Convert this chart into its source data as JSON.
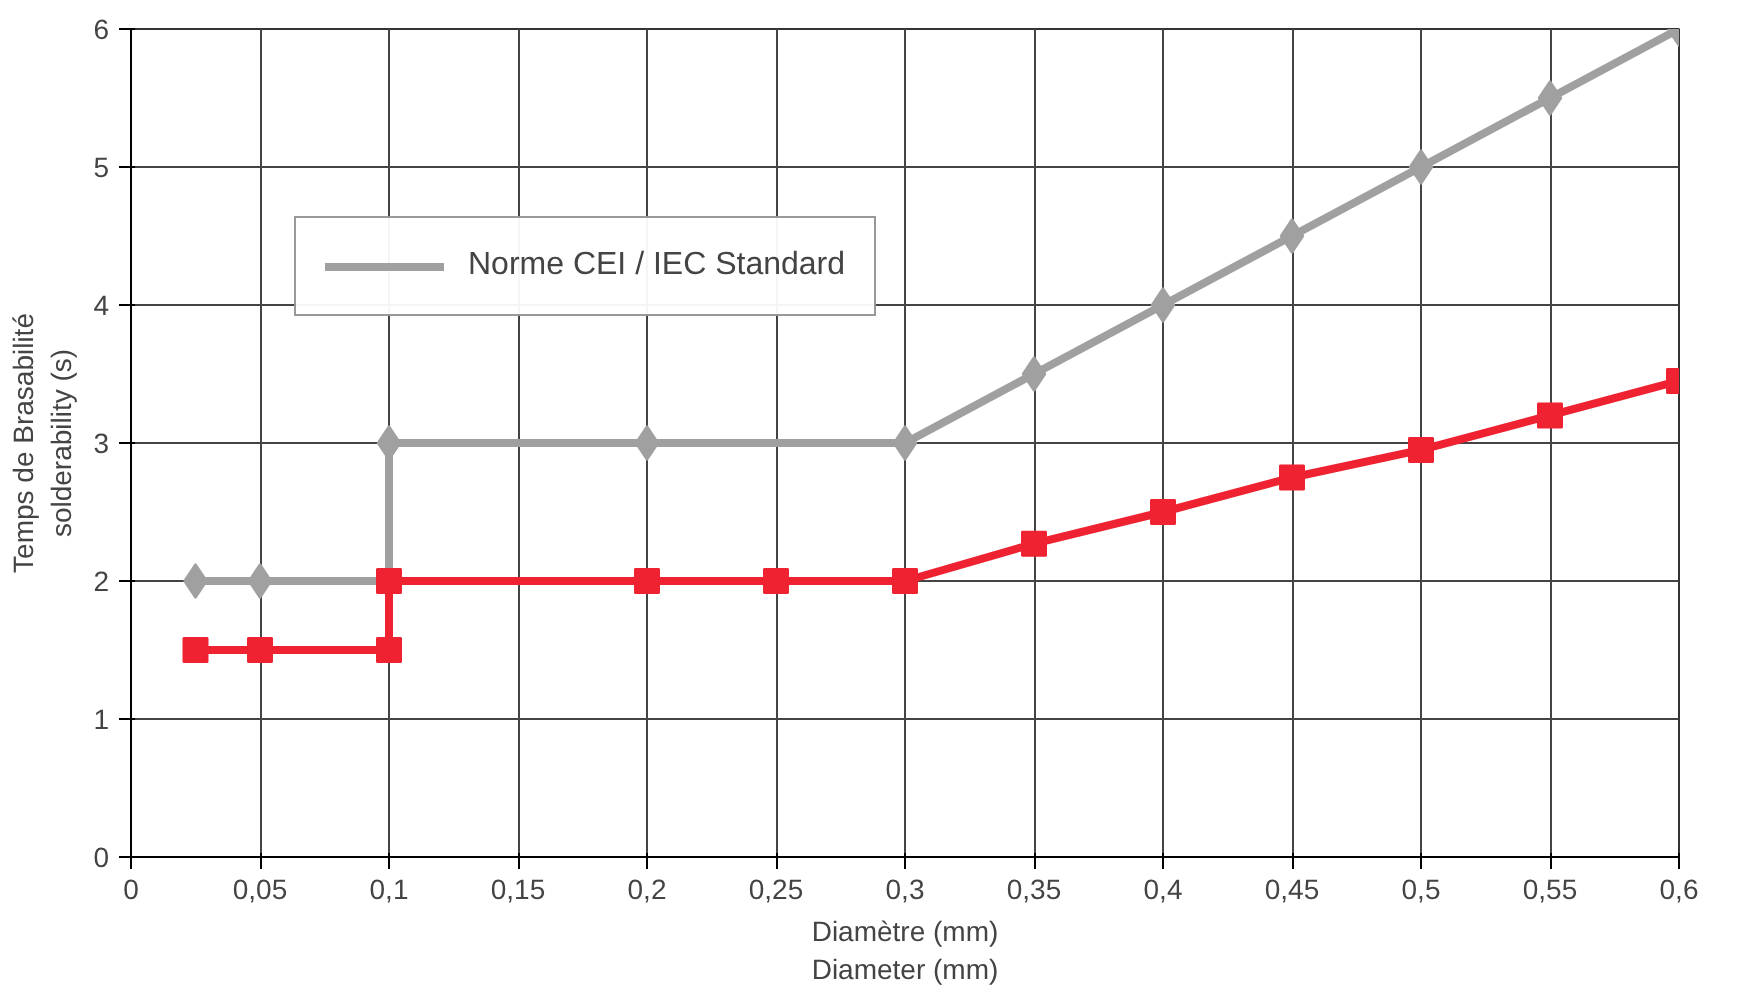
{
  "chart_data": {
    "type": "line",
    "xlabel": "Diamètre (mm)\nDiameter (mm)",
    "ylabel": "Temps de Brasabilité\nsolderability (s)",
    "xlim": [
      0,
      0.6
    ],
    "ylim": [
      0,
      6
    ],
    "xticks": [
      0,
      {
        "value": 0.05,
        "label": "0,05"
      },
      {
        "value": 0.1,
        "label": "0,1"
      },
      {
        "value": 0.15,
        "label": "0,15"
      },
      {
        "value": 0.2,
        "label": "0,2"
      },
      {
        "value": 0.25,
        "label": "0,25"
      },
      {
        "value": 0.3,
        "label": "0,3"
      },
      {
        "value": 0.35,
        "label": "0,35"
      },
      {
        "value": 0.4,
        "label": "0,4"
      },
      {
        "value": 0.45,
        "label": "0,45"
      },
      {
        "value": 0.5,
        "label": "0,5"
      },
      {
        "value": 0.55,
        "label": "0,55"
      },
      {
        "value": 0.6,
        "label": "0,6"
      }
    ],
    "yticks": [
      0,
      1,
      2,
      3,
      4,
      5,
      6
    ],
    "grid": true,
    "legend": "top left",
    "series": [
      {
        "name": "Norme CEI / IEC Standard",
        "color": "#a0a0a0",
        "marker": "diamond",
        "x": [
          0.025,
          0.05,
          0.1,
          0.1,
          0.2,
          0.3,
          0.35,
          0.4,
          0.45,
          0.5,
          0.55,
          0.6
        ],
        "values": [
          2,
          2,
          2,
          3,
          3,
          3,
          3.5,
          4,
          4.5,
          5,
          5.5,
          6
        ]
      },
      {
        "color": "#ee2231",
        "marker": "square",
        "x": [
          0.025,
          0.05,
          0.1,
          0.1,
          0.2,
          0.25,
          0.3,
          0.35,
          0.4,
          0.45,
          0.5,
          0.55,
          0.6
        ],
        "values": [
          1.5,
          1.5,
          1.5,
          2,
          2,
          2,
          2,
          2.27,
          2.5,
          2.75,
          2.95,
          3.2,
          3.45
        ]
      }
    ]
  }
}
